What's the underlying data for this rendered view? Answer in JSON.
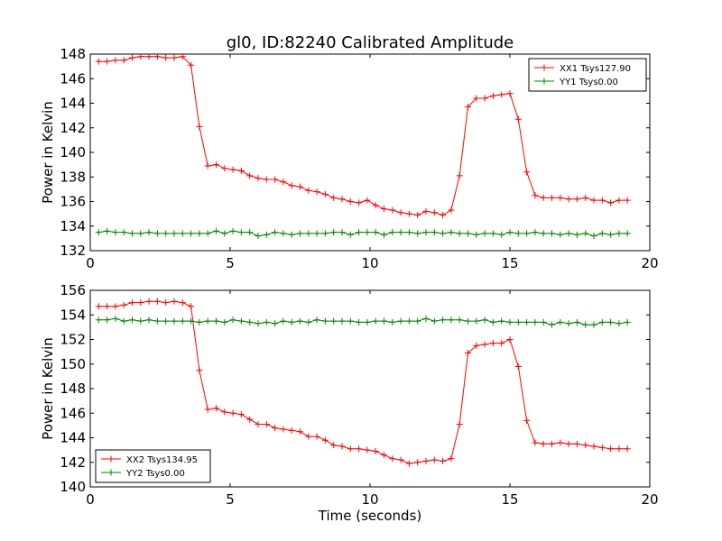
{
  "title": "gl0, ID:82240 Calibrated Amplitude",
  "chart_data": [
    {
      "type": "line",
      "title": "gl0, ID:82240 Calibrated Amplitude",
      "xlabel": "",
      "ylabel": "Power in Kelvin",
      "xlim": [
        0,
        20
      ],
      "ylim": [
        132,
        148
      ],
      "xticks": [
        "0",
        "5",
        "10",
        "15",
        "20"
      ],
      "yticks": [
        "132",
        "134",
        "136",
        "138",
        "140",
        "142",
        "144",
        "146",
        "148"
      ],
      "grid": false,
      "legend_placement": "top-right",
      "series": [
        {
          "name": "XX1 Tsys127.90",
          "color": "#ff0000",
          "x": [
            0.3,
            0.6,
            0.9,
            1.2,
            1.5,
            1.8,
            2.1,
            2.4,
            2.7,
            3.0,
            3.3,
            3.6,
            3.9,
            4.2,
            4.5,
            4.8,
            5.1,
            5.4,
            5.7,
            6.0,
            6.3,
            6.6,
            6.9,
            7.2,
            7.5,
            7.8,
            8.1,
            8.4,
            8.7,
            9.0,
            9.3,
            9.6,
            9.9,
            10.2,
            10.5,
            10.8,
            11.1,
            11.4,
            11.7,
            12.0,
            12.3,
            12.6,
            12.9,
            13.2,
            13.5,
            13.8,
            14.1,
            14.4,
            14.7,
            15.0,
            15.3,
            15.6,
            15.9,
            16.2,
            16.5,
            16.8,
            17.1,
            17.4,
            17.7,
            18.0,
            18.3,
            18.6,
            18.9,
            19.2
          ],
          "values": [
            147.4,
            147.4,
            147.5,
            147.5,
            147.7,
            147.8,
            147.8,
            147.8,
            147.7,
            147.7,
            147.8,
            147.1,
            142.1,
            138.9,
            139.0,
            138.7,
            138.6,
            138.5,
            138.1,
            137.9,
            137.8,
            137.8,
            137.6,
            137.3,
            137.2,
            136.9,
            136.8,
            136.6,
            136.3,
            136.2,
            136.0,
            135.9,
            136.1,
            135.7,
            135.4,
            135.3,
            135.1,
            135.0,
            134.9,
            135.2,
            135.1,
            134.9,
            135.3,
            138.1,
            143.7,
            144.4,
            144.4,
            144.6,
            144.7,
            144.8,
            142.7,
            138.4,
            136.5,
            136.3,
            136.3,
            136.3,
            136.2,
            136.2,
            136.3,
            136.1,
            136.1,
            135.9,
            136.1,
            136.1
          ]
        },
        {
          "name": "YY1 Tsys0.00",
          "color": "#008000",
          "x": [
            0.3,
            0.6,
            0.9,
            1.2,
            1.5,
            1.8,
            2.1,
            2.4,
            2.7,
            3.0,
            3.3,
            3.6,
            3.9,
            4.2,
            4.5,
            4.8,
            5.1,
            5.4,
            5.7,
            6.0,
            6.3,
            6.6,
            6.9,
            7.2,
            7.5,
            7.8,
            8.1,
            8.4,
            8.7,
            9.0,
            9.3,
            9.6,
            9.9,
            10.2,
            10.5,
            10.8,
            11.1,
            11.4,
            11.7,
            12.0,
            12.3,
            12.6,
            12.9,
            13.2,
            13.5,
            13.8,
            14.1,
            14.4,
            14.7,
            15.0,
            15.3,
            15.6,
            15.9,
            16.2,
            16.5,
            16.8,
            17.1,
            17.4,
            17.7,
            18.0,
            18.3,
            18.6,
            18.9,
            19.2
          ],
          "values": [
            133.5,
            133.6,
            133.5,
            133.5,
            133.4,
            133.4,
            133.5,
            133.4,
            133.4,
            133.4,
            133.4,
            133.4,
            133.4,
            133.4,
            133.6,
            133.4,
            133.6,
            133.5,
            133.5,
            133.2,
            133.3,
            133.5,
            133.4,
            133.3,
            133.4,
            133.4,
            133.4,
            133.4,
            133.5,
            133.5,
            133.3,
            133.5,
            133.5,
            133.5,
            133.3,
            133.5,
            133.5,
            133.5,
            133.4,
            133.5,
            133.5,
            133.4,
            133.5,
            133.4,
            133.4,
            133.3,
            133.4,
            133.4,
            133.3,
            133.5,
            133.4,
            133.4,
            133.5,
            133.4,
            133.4,
            133.3,
            133.4,
            133.3,
            133.4,
            133.2,
            133.4,
            133.3,
            133.4,
            133.4
          ]
        }
      ]
    },
    {
      "type": "line",
      "title": "",
      "xlabel": "Time (seconds)",
      "ylabel": "Power in Kelvin",
      "xlim": [
        0,
        20
      ],
      "ylim": [
        140,
        156
      ],
      "xticks": [
        "0",
        "5",
        "10",
        "15",
        "20"
      ],
      "yticks": [
        "140",
        "142",
        "144",
        "146",
        "148",
        "150",
        "152",
        "154",
        "156"
      ],
      "grid": false,
      "legend_placement": "bottom-left",
      "series": [
        {
          "name": "XX2 Tsys134.95",
          "color": "#ff0000",
          "x": [
            0.3,
            0.6,
            0.9,
            1.2,
            1.5,
            1.8,
            2.1,
            2.4,
            2.7,
            3.0,
            3.3,
            3.6,
            3.9,
            4.2,
            4.5,
            4.8,
            5.1,
            5.4,
            5.7,
            6.0,
            6.3,
            6.6,
            6.9,
            7.2,
            7.5,
            7.8,
            8.1,
            8.4,
            8.7,
            9.0,
            9.3,
            9.6,
            9.9,
            10.2,
            10.5,
            10.8,
            11.1,
            11.4,
            11.7,
            12.0,
            12.3,
            12.6,
            12.9,
            13.2,
            13.5,
            13.8,
            14.1,
            14.4,
            14.7,
            15.0,
            15.3,
            15.6,
            15.9,
            16.2,
            16.5,
            16.8,
            17.1,
            17.4,
            17.7,
            18.0,
            18.3,
            18.6,
            18.9,
            19.2
          ],
          "values": [
            154.7,
            154.7,
            154.7,
            154.8,
            155.0,
            155.0,
            155.1,
            155.1,
            155.0,
            155.1,
            155.0,
            154.7,
            149.5,
            146.3,
            146.4,
            146.1,
            146.0,
            145.9,
            145.5,
            145.1,
            145.1,
            144.8,
            144.7,
            144.6,
            144.5,
            144.1,
            144.1,
            143.8,
            143.4,
            143.3,
            143.1,
            143.1,
            143.0,
            142.9,
            142.6,
            142.3,
            142.2,
            141.9,
            142.0,
            142.1,
            142.2,
            142.1,
            142.3,
            145.1,
            150.9,
            151.5,
            151.6,
            151.7,
            151.7,
            152.0,
            149.8,
            145.4,
            143.6,
            143.5,
            143.5,
            143.6,
            143.5,
            143.5,
            143.4,
            143.3,
            143.2,
            143.1,
            143.1,
            143.1
          ]
        },
        {
          "name": "YY2 Tsys0.00",
          "color": "#008000",
          "x": [
            0.3,
            0.6,
            0.9,
            1.2,
            1.5,
            1.8,
            2.1,
            2.4,
            2.7,
            3.0,
            3.3,
            3.6,
            3.9,
            4.2,
            4.5,
            4.8,
            5.1,
            5.4,
            5.7,
            6.0,
            6.3,
            6.6,
            6.9,
            7.2,
            7.5,
            7.8,
            8.1,
            8.4,
            8.7,
            9.0,
            9.3,
            9.6,
            9.9,
            10.2,
            10.5,
            10.8,
            11.1,
            11.4,
            11.7,
            12.0,
            12.3,
            12.6,
            12.9,
            13.2,
            13.5,
            13.8,
            14.1,
            14.4,
            14.7,
            15.0,
            15.3,
            15.6,
            15.9,
            16.2,
            16.5,
            16.8,
            17.1,
            17.4,
            17.7,
            18.0,
            18.3,
            18.6,
            18.9,
            19.2
          ],
          "values": [
            153.6,
            153.6,
            153.7,
            153.5,
            153.6,
            153.5,
            153.6,
            153.5,
            153.5,
            153.5,
            153.5,
            153.5,
            153.4,
            153.5,
            153.5,
            153.4,
            153.6,
            153.5,
            153.4,
            153.3,
            153.4,
            153.3,
            153.5,
            153.4,
            153.5,
            153.4,
            153.6,
            153.5,
            153.5,
            153.5,
            153.5,
            153.4,
            153.4,
            153.5,
            153.5,
            153.4,
            153.5,
            153.5,
            153.5,
            153.7,
            153.5,
            153.6,
            153.6,
            153.6,
            153.5,
            153.5,
            153.6,
            153.4,
            153.5,
            153.4,
            153.4,
            153.4,
            153.4,
            153.4,
            153.2,
            153.4,
            153.3,
            153.4,
            153.2,
            153.2,
            153.4,
            153.4,
            153.3,
            153.4
          ]
        }
      ]
    }
  ]
}
